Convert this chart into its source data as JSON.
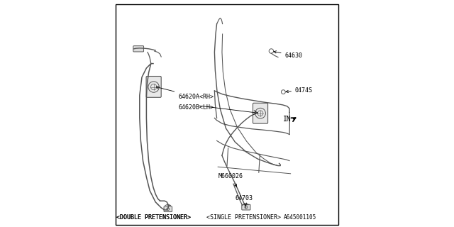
{
  "background_color": "#ffffff",
  "border_color": "#000000",
  "line_color": "#555555",
  "text_color": "#000000",
  "figsize": [
    6.4,
    3.2
  ],
  "dpi": 100,
  "label_64703": "64703",
  "label_M660026": "M660026",
  "label_64620A": "64620A<RH>",
  "label_64620B": "64620B<LH>",
  "label_0474S": "0474S",
  "label_64630": "64630",
  "label_double": "<DOUBLE PRETENSIONER>",
  "label_single": "<SINGLE PRETENSIONER>",
  "label_IN": "IN",
  "label_ref": "A645001105"
}
